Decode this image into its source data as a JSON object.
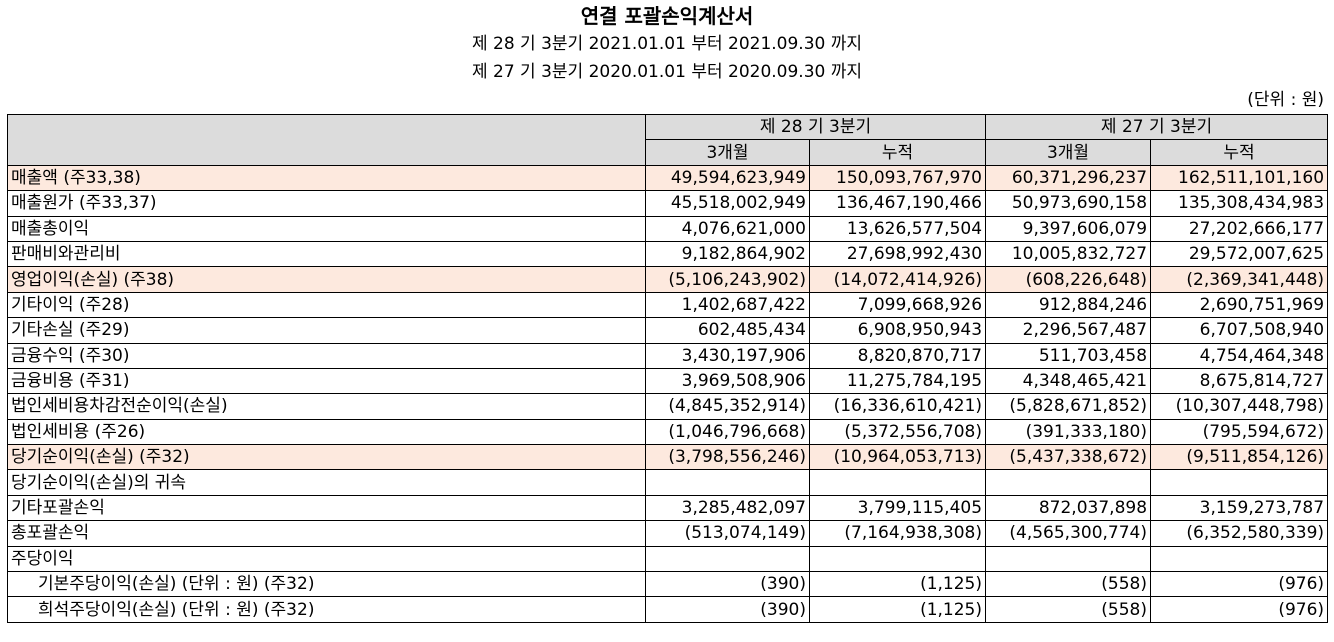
{
  "title": "연결 포괄손익계산서",
  "period_current": "제 28 기 3분기 2021.01.01 부터 2021.09.30 까지",
  "period_prior": "제 27 기 3분기 2020.01.01 부터 2020.09.30 까지",
  "unit": "(단위 : 원)",
  "header": {
    "col_current": "제 28 기 3분기",
    "col_prior": "제 27 기 3분기",
    "sub": [
      "3개월",
      "누적",
      "3개월",
      "누적"
    ]
  },
  "rows": [
    {
      "label": "매출액 (주33,38)",
      "highlight": true,
      "values": [
        "49,594,623,949",
        "150,093,767,970",
        "60,371,296,237",
        "162,511,101,160"
      ]
    },
    {
      "label": "매출원가 (주33,37)",
      "highlight": false,
      "values": [
        "45,518,002,949",
        "136,467,190,466",
        "50,973,690,158",
        "135,308,434,983"
      ]
    },
    {
      "label": "매출총이익",
      "highlight": false,
      "values": [
        "4,076,621,000",
        "13,626,577,504",
        "9,397,606,079",
        "27,202,666,177"
      ]
    },
    {
      "label": "판매비와관리비",
      "highlight": false,
      "values": [
        "9,182,864,902",
        "27,698,992,430",
        "10,005,832,727",
        "29,572,007,625"
      ]
    },
    {
      "label": "영업이익(손실) (주38)",
      "highlight": true,
      "values": [
        "(5,106,243,902)",
        "(14,072,414,926)",
        "(608,226,648)",
        "(2,369,341,448)"
      ]
    },
    {
      "label": "기타이익 (주28)",
      "highlight": false,
      "values": [
        "1,402,687,422",
        "7,099,668,926",
        "912,884,246",
        "2,690,751,969"
      ]
    },
    {
      "label": "기타손실 (주29)",
      "highlight": false,
      "values": [
        "602,485,434",
        "6,908,950,943",
        "2,296,567,487",
        "6,707,508,940"
      ]
    },
    {
      "label": "금융수익 (주30)",
      "highlight": false,
      "values": [
        "3,430,197,906",
        "8,820,870,717",
        "511,703,458",
        "4,754,464,348"
      ]
    },
    {
      "label": "금융비용 (주31)",
      "highlight": false,
      "values": [
        "3,969,508,906",
        "11,275,784,195",
        "4,348,465,421",
        "8,675,814,727"
      ]
    },
    {
      "label": "법인세비용차감전순이익(손실)",
      "highlight": false,
      "values": [
        "(4,845,352,914)",
        "(16,336,610,421)",
        "(5,828,671,852)",
        "(10,307,448,798)"
      ]
    },
    {
      "label": "법인세비용 (주26)",
      "highlight": false,
      "values": [
        "(1,046,796,668)",
        "(5,372,556,708)",
        "(391,333,180)",
        "(795,594,672)"
      ]
    },
    {
      "label": "당기순이익(손실) (주32)",
      "highlight": true,
      "values": [
        "(3,798,556,246)",
        "(10,964,053,713)",
        "(5,437,338,672)",
        "(9,511,854,126)"
      ]
    },
    {
      "label": "당기순이익(손실)의 귀속",
      "highlight": false,
      "values": [
        "",
        "",
        "",
        ""
      ]
    },
    {
      "label": "기타포괄손익",
      "highlight": false,
      "values": [
        "3,285,482,097",
        "3,799,115,405",
        "872,037,898",
        "3,159,273,787"
      ]
    },
    {
      "label": "총포괄손익",
      "highlight": false,
      "values": [
        "(513,074,149)",
        "(7,164,938,308)",
        "(4,565,300,774)",
        "(6,352,580,339)"
      ]
    },
    {
      "label": "주당이익",
      "highlight": false,
      "values": [
        "",
        "",
        "",
        ""
      ]
    },
    {
      "label": "기본주당이익(손실) (단위 : 원) (주32)",
      "highlight": false,
      "indent": true,
      "values": [
        "(390)",
        "(1,125)",
        "(558)",
        "(976)"
      ]
    },
    {
      "label": "희석주당이익(손실) (단위 : 원) (주32)",
      "highlight": false,
      "indent": true,
      "values": [
        "(390)",
        "(1,125)",
        "(558)",
        "(976)"
      ]
    }
  ]
}
